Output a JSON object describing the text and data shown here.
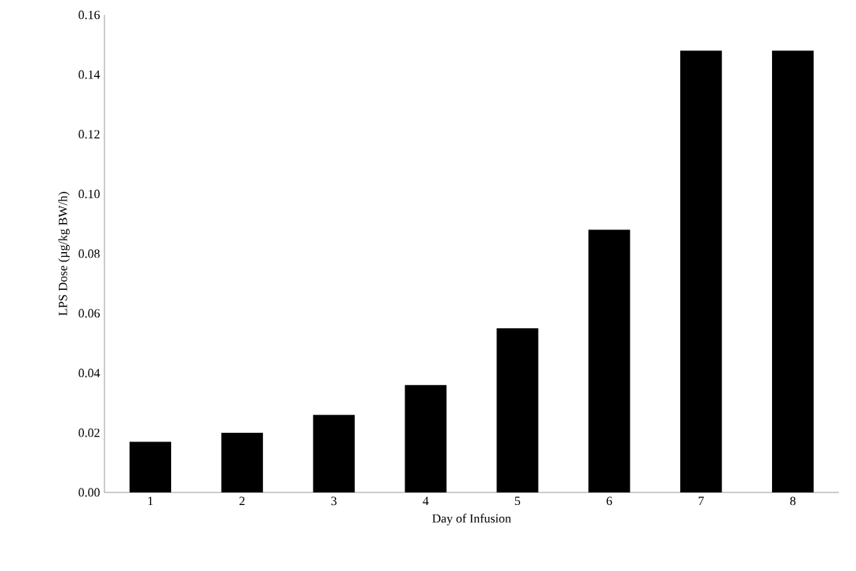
{
  "chart_data": {
    "type": "bar",
    "xlabel": "Day of Infusion",
    "ylabel": "LPS Dose (µg/kg BW/h)",
    "categories": [
      "1",
      "2",
      "3",
      "4",
      "5",
      "6",
      "7",
      "8"
    ],
    "values": [
      0.017,
      0.02,
      0.026,
      0.036,
      0.055,
      0.088,
      0.148,
      0.148
    ],
    "color": "#000000",
    "ylim": [
      0,
      0.16
    ],
    "yticks": [
      {
        "value": 0,
        "label": "0.00"
      },
      {
        "value": 0.02,
        "label": "0.02"
      },
      {
        "value": 0.04,
        "label": "0.04"
      },
      {
        "value": 0.06,
        "label": "0.06"
      },
      {
        "value": 0.08,
        "label": "0.08"
      },
      {
        "value": 0.1,
        "label": "0.10"
      },
      {
        "value": 0.12,
        "label": "0.12"
      },
      {
        "value": 0.14,
        "label": "0.14"
      },
      {
        "value": 0.16,
        "label": "0.16"
      }
    ],
    "grid": false
  }
}
